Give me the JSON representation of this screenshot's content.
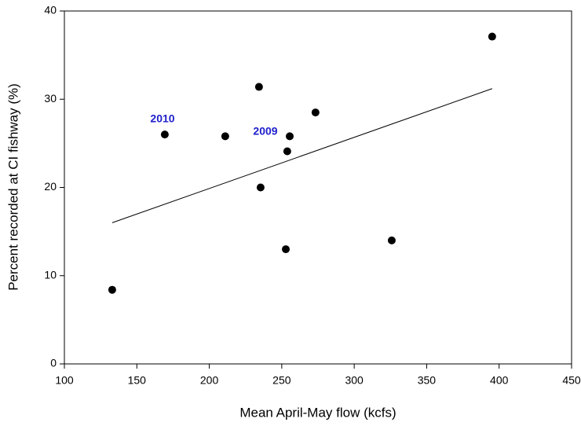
{
  "chart_data": {
    "type": "scatter",
    "x_label": "Mean April-May flow (kcfs)",
    "y_label": "Percent recorded at CI fishway (%)",
    "series": [
      {
        "x": [
          133,
          169.3,
          211,
          234.3,
          235.4,
          255.5,
          253.8,
          252.8,
          273.3,
          325.9,
          395.2
        ],
        "values": [
          8.4,
          26.0,
          25.8,
          31.4,
          20.0,
          25.8,
          24.1,
          13.0,
          28.5,
          14.0,
          37.1
        ],
        "color": "#000000"
      }
    ],
    "trend_line": {
      "x": [
        133,
        395.2
      ],
      "values": [
        16.0,
        31.2
      ],
      "color": "#000000"
    },
    "annotations": [
      "2010",
      "2009"
    ],
    "xlim": [
      100,
      450
    ],
    "xticks": [
      100,
      150,
      200,
      250,
      300,
      350,
      400,
      450
    ],
    "ylim": [
      0,
      40
    ],
    "yticks": [
      0,
      10,
      20,
      30,
      40
    ]
  }
}
